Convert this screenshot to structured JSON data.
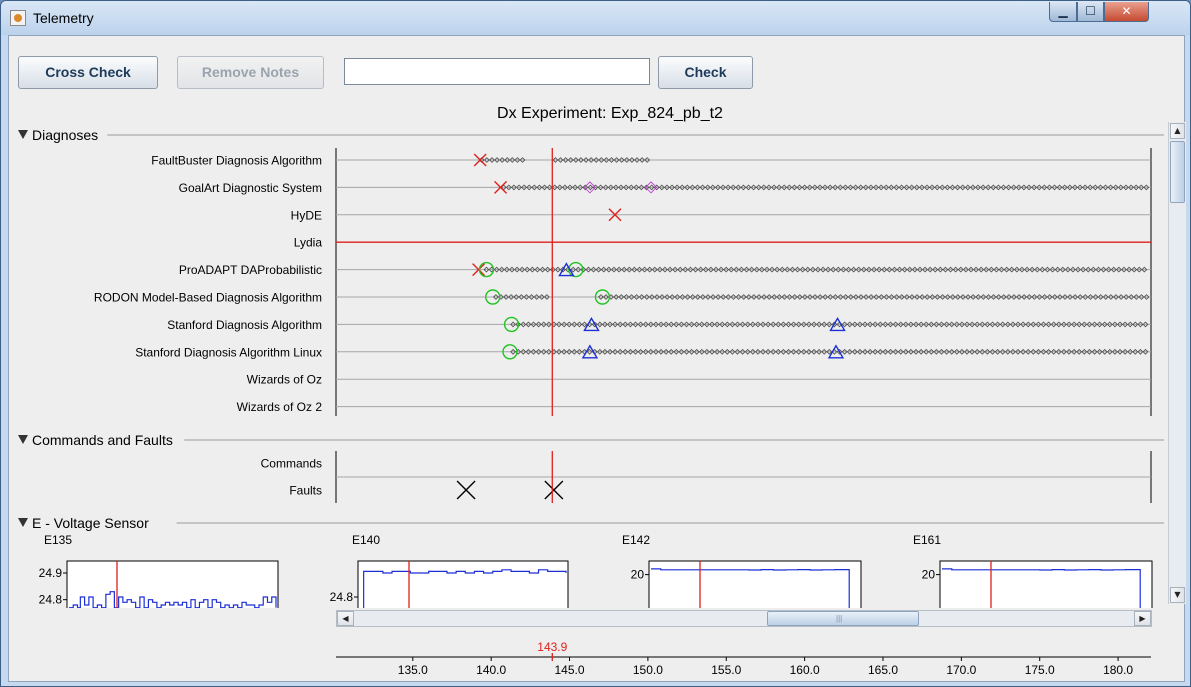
{
  "window": {
    "title": "Telemetry",
    "min_glyph": "▁",
    "max_glyph": "☐",
    "close_glyph": "✕"
  },
  "toolbar": {
    "cross_check_label": "Cross Check",
    "remove_notes_label": "Remove Notes",
    "notes_value": "",
    "check_label": "Check"
  },
  "header": {
    "experiment_title": "Dx Experiment: Exp_824_pb_t2"
  },
  "sections": {
    "diagnoses": "Diagnoses",
    "commands_faults": "Commands and Faults",
    "voltage": "E - Voltage Sensor"
  },
  "colors": {
    "cursor": "#e0201c",
    "diamond": "#555555",
    "fault_x": "#e0201c",
    "circle": "#22c322",
    "triangle": "#1c2fd6",
    "purple_diamond": "#c13bd6",
    "sensor_line": "#1c2fd6"
  },
  "scrollbar_glyphs": {
    "up": "▲",
    "down": "▼",
    "left": "◀",
    "right": "▶",
    "grip": "|||"
  },
  "chart_data": [
    {
      "type": "scatter",
      "title": "Dx Experiment: Exp_824_pb_t2",
      "x_range": [
        130.1,
        182.1
      ],
      "x_ticks": [
        135.0,
        140.0,
        145.0,
        150.0,
        155.0,
        160.0,
        165.0,
        170.0,
        175.0,
        180.0
      ],
      "x_tick_labels": [
        "135.0",
        "140.0",
        "145.0",
        "150.0",
        "155.0",
        "160.0",
        "165.0",
        "170.0",
        "175.0",
        "180.0"
      ],
      "cursor_x": 143.9,
      "cursor_label": "143.9",
      "rows": [
        {
          "name": "FaultBuster Diagnosis Algorithm",
          "diamond_runs": [
            [
              139.4,
              142.2
            ],
            [
              144.1,
              150.0
            ]
          ],
          "x_marks": [
            139.3
          ],
          "circles": [],
          "triangles": [],
          "purple_diamonds": [],
          "line": false
        },
        {
          "name": "GoalArt Diagnostic System",
          "diamond_runs": [
            [
              140.8,
              182.1
            ]
          ],
          "x_marks": [
            140.6
          ],
          "circles": [],
          "triangles": [],
          "purple_diamonds": [
            146.3,
            150.2
          ],
          "line": false
        },
        {
          "name": "HyDE",
          "diamond_runs": [],
          "x_marks": [
            147.9
          ],
          "circles": [],
          "triangles": [],
          "purple_diamonds": [],
          "line": false
        },
        {
          "name": "Lydia",
          "diamond_runs": [],
          "x_marks": [],
          "circles": [],
          "triangles": [],
          "purple_diamonds": [],
          "line": true
        },
        {
          "name": "ProADAPT DAProbabilistic",
          "diamond_runs": [
            [
              139.7,
              182.1
            ]
          ],
          "x_marks": [
            139.2
          ],
          "circles": [
            139.7,
            145.4
          ],
          "triangles": [
            144.8
          ],
          "purple_diamonds": [],
          "line": false
        },
        {
          "name": "RODON Model-Based Diagnosis Algorithm",
          "diamond_runs": [
            [
              140.3,
              143.8
            ],
            [
              147.0,
              182.1
            ]
          ],
          "x_marks": [],
          "circles": [
            140.1,
            147.1
          ],
          "triangles": [],
          "purple_diamonds": [],
          "line": false
        },
        {
          "name": "Stanford Diagnosis Algorithm",
          "diamond_runs": [
            [
              141.4,
              182.1
            ]
          ],
          "x_marks": [],
          "circles": [
            141.3
          ],
          "triangles": [
            146.4,
            162.1
          ],
          "purple_diamonds": [],
          "line": false
        },
        {
          "name": "Stanford Diagnosis Algorithm Linux",
          "diamond_runs": [
            [
              141.4,
              182.1
            ]
          ],
          "x_marks": [],
          "circles": [
            141.2
          ],
          "triangles": [
            146.3,
            162.0
          ],
          "purple_diamonds": [],
          "line": false
        },
        {
          "name": "Wizards of Oz",
          "diamond_runs": [],
          "x_marks": [],
          "circles": [],
          "triangles": [],
          "purple_diamonds": [],
          "line": false
        },
        {
          "name": "Wizards of Oz 2",
          "diamond_runs": [],
          "x_marks": [],
          "circles": [],
          "triangles": [],
          "purple_diamonds": [],
          "line": false
        }
      ],
      "commands": {
        "name": "Commands",
        "x_marks": []
      },
      "faults": {
        "name": "Faults",
        "x_marks": [
          138.4,
          144.0
        ]
      }
    },
    {
      "type": "line",
      "title": "E135",
      "y_tick_labels": [
        "24.9",
        "24.8"
      ],
      "y_ticks": [
        24.9,
        24.8
      ],
      "ylim": [
        24.75,
        24.93
      ],
      "cursor_x": 143.9,
      "x": [
        138.5,
        138.8,
        139.1,
        139.3,
        139.6,
        139.9,
        140.2,
        140.5,
        140.8,
        141.1,
        141.4,
        141.7,
        142.0,
        142.3,
        142.6,
        142.9,
        143.2,
        143.5,
        143.8,
        144.1,
        144.4,
        144.7,
        145.0,
        145.3,
        145.6,
        145.9,
        146.2,
        146.5,
        146.8,
        147.1,
        147.4,
        147.7,
        148.0,
        148.3,
        148.6,
        148.9,
        149.2,
        149.5,
        149.8,
        150.1,
        150.4,
        150.7,
        151.0,
        151.3,
        151.6,
        151.9,
        152.2,
        152.5,
        152.8,
        153.1
      ],
      "y": [
        24.77,
        24.78,
        24.77,
        24.81,
        24.78,
        24.81,
        24.77,
        24.78,
        24.77,
        24.82,
        24.83,
        24.77,
        24.81,
        24.79,
        24.8,
        24.79,
        24.77,
        24.81,
        24.77,
        24.8,
        24.79,
        24.77,
        24.78,
        24.79,
        24.78,
        24.79,
        24.78,
        24.79,
        24.77,
        24.8,
        24.77,
        24.79,
        24.8,
        24.77,
        24.8,
        24.79,
        24.77,
        24.78,
        24.77,
        24.78,
        24.77,
        24.79,
        24.78,
        24.78,
        24.77,
        24.78,
        24.81,
        24.79,
        24.81,
        24.77
      ]
    },
    {
      "type": "line",
      "title": "E140",
      "y_tick_labels": [
        "24.8"
      ],
      "y_ticks": [
        24.8
      ],
      "ylim": [
        24.7,
        25.0
      ],
      "cursor_x": 143.9,
      "x": [
        143.5,
        143.9,
        143.9,
        145.0,
        146.0,
        147.0,
        148.0,
        149.0,
        150.0,
        151.0,
        152.0,
        153.0,
        154.0,
        155.0,
        156.0,
        157.0,
        158.0,
        159.0,
        160.0,
        161.0,
        162.0,
        163.0,
        164.0,
        165.0,
        166.0
      ],
      "y": [
        24.7,
        24.7,
        24.96,
        24.96,
        24.95,
        24.96,
        24.96,
        24.95,
        24.95,
        24.96,
        24.96,
        24.95,
        24.96,
        24.95,
        24.96,
        24.95,
        24.96,
        24.97,
        24.96,
        24.96,
        24.95,
        24.97,
        24.96,
        24.96,
        24.95
      ]
    },
    {
      "type": "line",
      "title": "E142",
      "y_tick_labels": [
        "20"
      ],
      "y_ticks": [
        20
      ],
      "ylim": [
        0,
        25
      ],
      "cursor_x": 143.9,
      "x": [
        143.5,
        143.9,
        146.0,
        147.5,
        148.0,
        148.5,
        149.0,
        149.5,
        150.0,
        150.5,
        151.0,
        151.6,
        151.6,
        152.0
      ],
      "y": [
        23,
        22.5,
        22.5,
        22.4,
        22.6,
        22.4,
        22.5,
        22.6,
        22.4,
        22.5,
        22.6,
        22.5,
        0,
        0
      ]
    },
    {
      "type": "line",
      "title": "E161",
      "y_tick_labels": [
        "20"
      ],
      "y_ticks": [
        20
      ],
      "ylim": [
        0,
        25
      ],
      "cursor_x": 143.9,
      "x": [
        143.5,
        143.9,
        146.0,
        147.5,
        148.0,
        148.5,
        149.0,
        149.5,
        150.0,
        150.5,
        151.0,
        151.6,
        151.6,
        152.0
      ],
      "y": [
        23,
        22.5,
        22.5,
        22.4,
        22.6,
        22.4,
        22.5,
        22.6,
        22.4,
        22.5,
        22.6,
        22.5,
        0,
        0
      ]
    }
  ]
}
